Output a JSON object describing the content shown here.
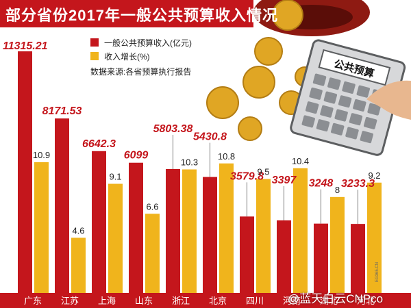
{
  "title": "部分省份2017年一般公共预算收入情况",
  "legend": {
    "revenue_label": "一般公共预算收入(亿元)",
    "growth_label": "收入增长(%)"
  },
  "source": "数据来源:各省预算执行报告",
  "watermark": "@蓝天白云CNPco",
  "credit": "EG365.CN",
  "illustration": {
    "calculator_label": "公共预算"
  },
  "colors": {
    "revenue": "#c4161c",
    "growth": "#f0b41c",
    "title_bg": "#c4161c",
    "revenue_label": "#c4161c",
    "growth_label": "#222222"
  },
  "chart_data": {
    "type": "bar",
    "title": "部分省份2017年一般公共预算收入情况",
    "categories": [
      "广东",
      "江苏",
      "上海",
      "山东",
      "浙江",
      "北京",
      "四川",
      "河南",
      "湖北",
      "河北"
    ],
    "series": [
      {
        "name": "一般公共预算收入(亿元)",
        "values": [
          11315.21,
          8171.53,
          6642.3,
          6099,
          5803.38,
          5430.8,
          3579.8,
          3397,
          3248,
          3233.3
        ],
        "labels": [
          "11315.21",
          "8171.53",
          "6642.3",
          "6099",
          "5803.38",
          "5430.8",
          "3579.8",
          "3397",
          "3248",
          "3233.3"
        ]
      },
      {
        "name": "收入增长(%)",
        "values": [
          10.9,
          4.6,
          9.1,
          6.6,
          10.3,
          10.8,
          9.5,
          10.4,
          8,
          9.2
        ],
        "labels": [
          "10.9",
          "4.6",
          "9.1",
          "6.6",
          "10.3",
          "10.8",
          "9.5",
          "10.4",
          "8",
          "9.2"
        ]
      }
    ],
    "legend_position": "top-left",
    "grid": false
  }
}
